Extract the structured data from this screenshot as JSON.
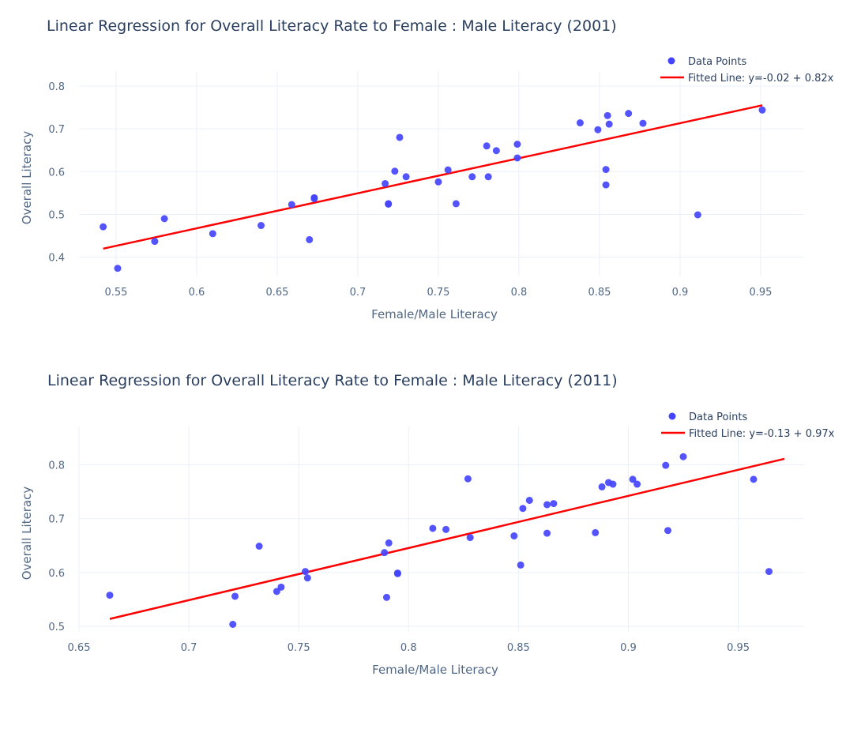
{
  "chart_data": [
    {
      "type": "scatter",
      "title": "Linear Regression for Overall Literacy Rate to Female : Male Literacy (2001)",
      "xlabel": "Female/Male Literacy",
      "ylabel": "Overall Literacy",
      "xlim": [
        0.527,
        0.977
      ],
      "ylim": [
        0.355,
        0.835
      ],
      "xticks": [
        0.55,
        0.6,
        0.65,
        0.7,
        0.75,
        0.8,
        0.85,
        0.9,
        0.95
      ],
      "xtick_labels": [
        "0.55",
        "0.6",
        "0.65",
        "0.7",
        "0.75",
        "0.8",
        "0.85",
        "0.9",
        "0.95"
      ],
      "yticks": [
        0.4,
        0.5,
        0.6,
        0.7,
        0.8
      ],
      "ytick_labels": [
        "0.4",
        "0.5",
        "0.6",
        "0.7",
        "0.8"
      ],
      "grid": true,
      "legend_position": "top-right",
      "series": [
        {
          "name": "Data Points",
          "kind": "markers",
          "color": "#4444ff",
          "points": [
            [
              0.542,
              0.471
            ],
            [
              0.551,
              0.374
            ],
            [
              0.574,
              0.437
            ],
            [
              0.58,
              0.49
            ],
            [
              0.61,
              0.455
            ],
            [
              0.64,
              0.474
            ],
            [
              0.659,
              0.523
            ],
            [
              0.67,
              0.441
            ],
            [
              0.673,
              0.537
            ],
            [
              0.673,
              0.539
            ],
            [
              0.717,
              0.572
            ],
            [
              0.719,
              0.524
            ],
            [
              0.719,
              0.525
            ],
            [
              0.723,
              0.601
            ],
            [
              0.726,
              0.68
            ],
            [
              0.73,
              0.588
            ],
            [
              0.75,
              0.576
            ],
            [
              0.756,
              0.604
            ],
            [
              0.761,
              0.525
            ],
            [
              0.771,
              0.588
            ],
            [
              0.78,
              0.66
            ],
            [
              0.781,
              0.588
            ],
            [
              0.786,
              0.649
            ],
            [
              0.799,
              0.632
            ],
            [
              0.799,
              0.664
            ],
            [
              0.838,
              0.714
            ],
            [
              0.849,
              0.698
            ],
            [
              0.854,
              0.569
            ],
            [
              0.854,
              0.605
            ],
            [
              0.855,
              0.731
            ],
            [
              0.856,
              0.711
            ],
            [
              0.868,
              0.736
            ],
            [
              0.877,
              0.713
            ],
            [
              0.911,
              0.499
            ],
            [
              0.951,
              0.744
            ]
          ]
        },
        {
          "name": "Fitted Line: y=-0.02 + 0.82x",
          "kind": "line",
          "color": "#ff0000",
          "points": [
            [
              0.542,
              0.42
            ],
            [
              0.951,
              0.755
            ]
          ]
        }
      ]
    },
    {
      "type": "scatter",
      "title": "Linear Regression for Overall Literacy Rate to Female : Male Literacy (2011)",
      "xlabel": "Female/Male Literacy",
      "ylabel": "Overall Literacy",
      "xlim": [
        0.65,
        0.98
      ],
      "ylim": [
        0.49,
        0.871
      ],
      "xticks": [
        0.65,
        0.7,
        0.75,
        0.8,
        0.85,
        0.9,
        0.95
      ],
      "xtick_labels": [
        "0.65",
        "0.7",
        "0.75",
        "0.8",
        "0.85",
        "0.9",
        "0.95"
      ],
      "yticks": [
        0.5,
        0.6,
        0.7,
        0.8
      ],
      "ytick_labels": [
        "0.5",
        "0.6",
        "0.7",
        "0.8"
      ],
      "grid": true,
      "legend_position": "top-right",
      "series": [
        {
          "name": "Data Points",
          "kind": "markers",
          "color": "#4444ff",
          "points": [
            [
              0.664,
              0.558
            ],
            [
              0.72,
              0.504
            ],
            [
              0.721,
              0.556
            ],
            [
              0.732,
              0.649
            ],
            [
              0.74,
              0.565
            ],
            [
              0.742,
              0.573
            ],
            [
              0.753,
              0.602
            ],
            [
              0.754,
              0.59
            ],
            [
              0.789,
              0.637
            ],
            [
              0.79,
              0.554
            ],
            [
              0.791,
              0.655
            ],
            [
              0.795,
              0.598
            ],
            [
              0.795,
              0.599
            ],
            [
              0.811,
              0.682
            ],
            [
              0.817,
              0.68
            ],
            [
              0.827,
              0.774
            ],
            [
              0.828,
              0.665
            ],
            [
              0.848,
              0.668
            ],
            [
              0.851,
              0.614
            ],
            [
              0.852,
              0.719
            ],
            [
              0.855,
              0.734
            ],
            [
              0.863,
              0.726
            ],
            [
              0.863,
              0.673
            ],
            [
              0.866,
              0.728
            ],
            [
              0.885,
              0.674
            ],
            [
              0.888,
              0.759
            ],
            [
              0.891,
              0.767
            ],
            [
              0.893,
              0.764
            ],
            [
              0.902,
              0.773
            ],
            [
              0.904,
              0.764
            ],
            [
              0.917,
              0.799
            ],
            [
              0.918,
              0.678
            ],
            [
              0.925,
              0.815
            ],
            [
              0.957,
              0.773
            ],
            [
              0.964,
              0.602
            ]
          ]
        },
        {
          "name": "Fitted Line: y=-0.13 + 0.97x",
          "kind": "line",
          "color": "#ff0000",
          "points": [
            [
              0.664,
              0.514
            ],
            [
              0.971,
              0.811
            ]
          ]
        }
      ]
    }
  ]
}
